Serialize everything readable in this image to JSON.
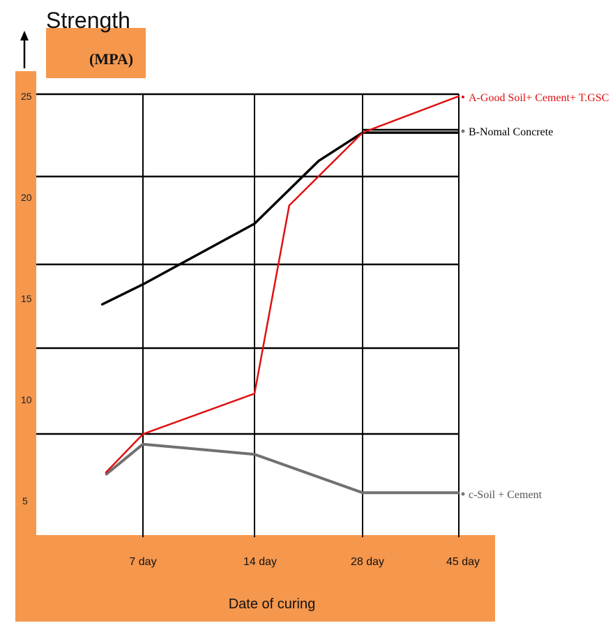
{
  "chart_data": {
    "type": "line",
    "ylabel": "Strength",
    "yunit": "(MPA)",
    "xlabel": "Date of curing",
    "y_ticks": [
      "25",
      "20",
      "15",
      "10",
      "5"
    ],
    "x_ticks": [
      "7 day",
      "14 day",
      "28 day",
      "45 day"
    ],
    "grid": true,
    "legend_position": "right",
    "series": [
      {
        "key": "A",
        "name": "A-Good Soil+ Cement+ T.GSC",
        "color": "#e01010",
        "points": [
          [
            5.2,
            6.3
          ],
          [
            7,
            8.2
          ],
          [
            14,
            10.2
          ],
          [
            18.5,
            19.5
          ],
          [
            28,
            23.1
          ],
          [
            45,
            24.9
          ]
        ]
      },
      {
        "key": "B",
        "name": "B-Nomal Concrete",
        "color": "#000000",
        "points": [
          [
            5.0,
            14.6
          ],
          [
            7,
            15.6
          ],
          [
            14,
            18.6
          ],
          [
            22.3,
            21.7
          ],
          [
            28,
            23.1
          ],
          [
            45,
            23.1
          ]
        ]
      },
      {
        "key": "C",
        "name": "c-Soil + Cement",
        "color": "#707070",
        "points": [
          [
            5.2,
            6.2
          ],
          [
            7,
            7.7
          ],
          [
            14,
            7.2
          ],
          [
            28,
            5.3
          ],
          [
            45,
            5.3
          ]
        ]
      }
    ]
  },
  "colors": {
    "band": "#f5974d",
    "grid": "#000000"
  }
}
